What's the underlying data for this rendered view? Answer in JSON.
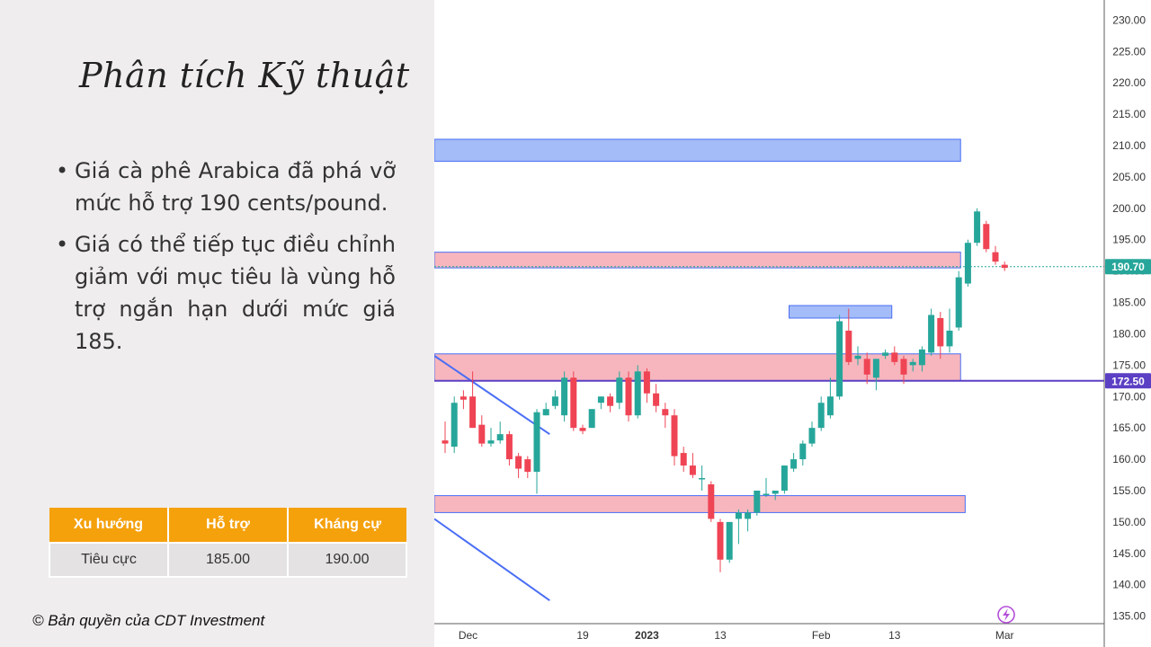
{
  "slide": {
    "title": "Phân tích Kỹ thuật",
    "bullets": [
      "Giá cà phê Arabica đã phá vỡ mức hỗ trợ 190 cents/pound.",
      "Giá có thể tiếp tục điều chỉnh giảm với mục tiêu là vùng hỗ trợ ngắn hạn dưới mức giá 185."
    ],
    "bullet_marker": "•",
    "copyright": "© Bản quyền của CDT Investment"
  },
  "summary_table": {
    "headers": [
      "Xu hướng",
      "Hỗ trợ",
      "Kháng cự"
    ],
    "rows": [
      [
        "Tiêu cực",
        "185.00",
        "190.00"
      ]
    ]
  },
  "colors": {
    "header_orange": "#f5a10c",
    "bull": "#26a69a",
    "bear": "#ef4454",
    "zone_red": "#f7b6bd",
    "zone_blue": "#9fb8f7",
    "line_purple": "#5b3fc4",
    "trendline": "#4a6ef5"
  },
  "chart_data": {
    "type": "candlestick",
    "y_ticks": [
      "230.00",
      "225.00",
      "220.00",
      "215.00",
      "210.00",
      "205.00",
      "200.00",
      "195.00",
      "190.00",
      "185.00",
      "180.00",
      "175.00",
      "170.00",
      "165.00",
      "160.00",
      "155.00",
      "150.00",
      "145.00",
      "140.00",
      "135.00"
    ],
    "ylim": [
      133.8,
      233.2
    ],
    "x_ticks": [
      {
        "label": "Dec",
        "bar": 2.5,
        "bold": false
      },
      {
        "label": "19",
        "bar": 15,
        "bold": false
      },
      {
        "label": "2023",
        "bar": 22,
        "bold": true
      },
      {
        "label": "13",
        "bar": 30,
        "bold": false
      },
      {
        "label": "Feb",
        "bar": 41,
        "bold": false
      },
      {
        "label": "13",
        "bar": 49,
        "bold": false
      },
      {
        "label": "Mar",
        "bar": 61,
        "bold": false
      }
    ],
    "price_labels": [
      {
        "value": 190.7,
        "text": "190.70",
        "color": "#26a69a"
      },
      {
        "value": 172.5,
        "text": "172.50",
        "color": "#5b3fc4"
      }
    ],
    "zones": [
      {
        "from_bar": 0,
        "to_bar": 56.2,
        "low": 207.5,
        "high": 211.0,
        "kind": "resistance-blue"
      },
      {
        "from_bar": 0,
        "to_bar": 56.2,
        "low": 190.5,
        "high": 193.0,
        "kind": "resistance-red"
      },
      {
        "from_bar": 37.5,
        "to_bar": 48.7,
        "low": 182.5,
        "high": 184.5,
        "kind": "resistance-blue"
      },
      {
        "from_bar": 0,
        "to_bar": 56.2,
        "low": 172.5,
        "high": 176.8,
        "kind": "support-red"
      },
      {
        "from_bar": 0,
        "to_bar": 56.7,
        "low": 151.5,
        "high": 154.2,
        "kind": "support-red"
      }
    ],
    "trendlines": [
      {
        "x1": 0,
        "y1": 176.5,
        "x2": 11.4,
        "y2": 164.0
      },
      {
        "x1": 0,
        "y1": 150.5,
        "x2": 11.4,
        "y2": 137.5
      }
    ],
    "hlines": [
      {
        "value": 172.5,
        "style": "solid",
        "color": "#5b3fc4"
      },
      {
        "value": 190.7,
        "style": "dotted",
        "color": "#26a69a"
      }
    ],
    "candles": [
      {
        "o": 163.0,
        "h": 166.0,
        "l": 161.0,
        "c": 162.5
      },
      {
        "o": 162.0,
        "h": 170.0,
        "l": 161.0,
        "c": 169.0
      },
      {
        "o": 170.0,
        "h": 171.0,
        "l": 168.0,
        "c": 169.5
      },
      {
        "o": 170.0,
        "h": 174.0,
        "l": 165.0,
        "c": 165.0
      },
      {
        "o": 165.5,
        "h": 167.0,
        "l": 162.0,
        "c": 162.5
      },
      {
        "o": 162.5,
        "h": 165.0,
        "l": 162.0,
        "c": 163.0
      },
      {
        "o": 163.0,
        "h": 166.0,
        "l": 162.5,
        "c": 164.0
      },
      {
        "o": 164.0,
        "h": 164.5,
        "l": 159.0,
        "c": 160.0
      },
      {
        "o": 160.5,
        "h": 161.0,
        "l": 157.0,
        "c": 158.5
      },
      {
        "o": 160.0,
        "h": 160.5,
        "l": 157.0,
        "c": 158.0
      },
      {
        "o": 158.0,
        "h": 168.0,
        "l": 154.5,
        "c": 167.5
      },
      {
        "o": 167.0,
        "h": 169.0,
        "l": 167.0,
        "c": 168.0
      },
      {
        "o": 168.5,
        "h": 171.0,
        "l": 168.0,
        "c": 170.0
      },
      {
        "o": 167.0,
        "h": 174.0,
        "l": 166.0,
        "c": 173.0
      },
      {
        "o": 173.0,
        "h": 174.0,
        "l": 164.5,
        "c": 165.0
      },
      {
        "o": 165.0,
        "h": 165.5,
        "l": 164.0,
        "c": 164.5
      },
      {
        "o": 165.0,
        "h": 168.0,
        "l": 165.0,
        "c": 168.0
      },
      {
        "o": 169.0,
        "h": 170.0,
        "l": 168.0,
        "c": 170.0
      },
      {
        "o": 170.0,
        "h": 170.5,
        "l": 167.5,
        "c": 168.5
      },
      {
        "o": 169.0,
        "h": 174.0,
        "l": 168.0,
        "c": 173.0
      },
      {
        "o": 173.0,
        "h": 174.0,
        "l": 166.0,
        "c": 167.0
      },
      {
        "o": 167.0,
        "h": 175.0,
        "l": 166.5,
        "c": 174.0
      },
      {
        "o": 174.0,
        "h": 174.5,
        "l": 169.0,
        "c": 170.5
      },
      {
        "o": 170.5,
        "h": 172.0,
        "l": 167.5,
        "c": 168.5
      },
      {
        "o": 168.0,
        "h": 169.0,
        "l": 165.0,
        "c": 167.0
      },
      {
        "o": 167.0,
        "h": 168.0,
        "l": 159.0,
        "c": 160.5
      },
      {
        "o": 161.0,
        "h": 162.0,
        "l": 158.0,
        "c": 159.0
      },
      {
        "o": 159.0,
        "h": 161.0,
        "l": 157.0,
        "c": 157.5
      },
      {
        "o": 157.0,
        "h": 159.0,
        "l": 155.0,
        "c": 157.0
      },
      {
        "o": 156.0,
        "h": 156.5,
        "l": 150.0,
        "c": 150.5
      },
      {
        "o": 150.0,
        "h": 150.5,
        "l": 142.0,
        "c": 144.0
      },
      {
        "o": 144.0,
        "h": 150.0,
        "l": 143.5,
        "c": 150.0
      },
      {
        "o": 150.5,
        "h": 152.0,
        "l": 146.5,
        "c": 151.5
      },
      {
        "o": 150.5,
        "h": 152.0,
        "l": 148.5,
        "c": 151.5
      },
      {
        "o": 151.5,
        "h": 155.0,
        "l": 151.0,
        "c": 155.0
      },
      {
        "o": 154.5,
        "h": 157.0,
        "l": 154.0,
        "c": 154.5
      },
      {
        "o": 154.5,
        "h": 155.0,
        "l": 153.5,
        "c": 155.0
      },
      {
        "o": 155.0,
        "h": 159.0,
        "l": 154.5,
        "c": 159.0
      },
      {
        "o": 158.5,
        "h": 161.0,
        "l": 158.0,
        "c": 160.0
      },
      {
        "o": 160.0,
        "h": 163.0,
        "l": 159.0,
        "c": 162.5
      },
      {
        "o": 162.5,
        "h": 166.0,
        "l": 162.0,
        "c": 165.0
      },
      {
        "o": 165.0,
        "h": 170.0,
        "l": 164.5,
        "c": 169.0
      },
      {
        "o": 167.0,
        "h": 173.0,
        "l": 166.5,
        "c": 170.0
      },
      {
        "o": 170.0,
        "h": 183.0,
        "l": 169.5,
        "c": 182.0
      },
      {
        "o": 180.5,
        "h": 184.0,
        "l": 175.0,
        "c": 175.5
      },
      {
        "o": 176.0,
        "h": 178.0,
        "l": 175.0,
        "c": 176.5
      },
      {
        "o": 176.0,
        "h": 177.0,
        "l": 172.0,
        "c": 173.5
      },
      {
        "o": 173.0,
        "h": 176.0,
        "l": 171.0,
        "c": 176.0
      },
      {
        "o": 176.5,
        "h": 177.5,
        "l": 176.0,
        "c": 177.0
      },
      {
        "o": 177.0,
        "h": 178.0,
        "l": 175.0,
        "c": 175.5
      },
      {
        "o": 176.0,
        "h": 176.5,
        "l": 172.0,
        "c": 173.5
      },
      {
        "o": 175.0,
        "h": 176.0,
        "l": 174.0,
        "c": 175.5
      },
      {
        "o": 175.0,
        "h": 178.0,
        "l": 174.0,
        "c": 177.5
      },
      {
        "o": 177.0,
        "h": 184.0,
        "l": 176.5,
        "c": 183.0
      },
      {
        "o": 182.5,
        "h": 183.5,
        "l": 176.0,
        "c": 178.0
      },
      {
        "o": 178.0,
        "h": 184.0,
        "l": 177.0,
        "c": 180.5
      },
      {
        "o": 181.0,
        "h": 190.0,
        "l": 180.5,
        "c": 189.0
      },
      {
        "o": 188.0,
        "h": 195.0,
        "l": 187.5,
        "c": 194.5
      },
      {
        "o": 194.5,
        "h": 200.0,
        "l": 194.0,
        "c": 199.5
      },
      {
        "o": 197.5,
        "h": 198.0,
        "l": 193.0,
        "c": 193.5
      },
      {
        "o": 193.0,
        "h": 194.0,
        "l": 191.0,
        "c": 191.5
      },
      {
        "o": 191.0,
        "h": 191.5,
        "l": 190.0,
        "c": 190.5
      }
    ]
  }
}
